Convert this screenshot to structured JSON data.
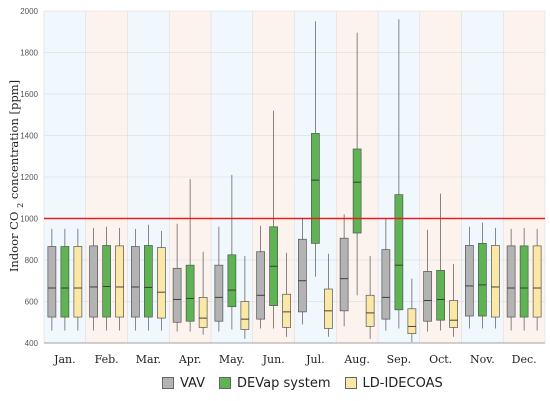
{
  "chart_data": {
    "type": "box",
    "ylabel": "Indoor CO2 concentration [ppm]",
    "ylim": [
      400,
      2000
    ],
    "y_ticks": [
      400,
      600,
      800,
      1000,
      1200,
      1400,
      1600,
      1800,
      2000
    ],
    "threshold": {
      "value": 1000,
      "color": "#e81e1e"
    },
    "categories": [
      "Jan.",
      "Feb.",
      "Mar.",
      "Apr.",
      "May.",
      "Jun.",
      "Jul.",
      "Aug.",
      "Sep.",
      "Oct.",
      "Nov.",
      "Dec."
    ],
    "band_colors": [
      "#f0f7fd",
      "#fdf3ee"
    ],
    "series": [
      {
        "name": "VAV",
        "color": "#b3b3b3",
        "boxes": [
          {
            "min": 460,
            "q1": 525,
            "median": 665,
            "q3": 865,
            "max": 950
          },
          {
            "min": 460,
            "q1": 525,
            "median": 670,
            "q3": 868,
            "max": 955
          },
          {
            "min": 460,
            "q1": 525,
            "median": 670,
            "q3": 865,
            "max": 950
          },
          {
            "min": 455,
            "q1": 500,
            "median": 610,
            "q3": 760,
            "max": 975
          },
          {
            "min": 455,
            "q1": 505,
            "median": 620,
            "q3": 775,
            "max": 960
          },
          {
            "min": 470,
            "q1": 515,
            "median": 630,
            "q3": 840,
            "max": 965
          },
          {
            "min": 490,
            "q1": 550,
            "median": 700,
            "q3": 900,
            "max": 1000
          },
          {
            "min": 480,
            "q1": 555,
            "median": 710,
            "q3": 905,
            "max": 1020
          },
          {
            "min": 460,
            "q1": 515,
            "median": 620,
            "q3": 850,
            "max": 1000
          },
          {
            "min": 455,
            "q1": 505,
            "median": 605,
            "q3": 745,
            "max": 945
          },
          {
            "min": 470,
            "q1": 530,
            "median": 675,
            "q3": 870,
            "max": 960
          },
          {
            "min": 460,
            "q1": 525,
            "median": 665,
            "q3": 868,
            "max": 950
          }
        ]
      },
      {
        "name": "DEVap system",
        "color": "#5eb352",
        "boxes": [
          {
            "min": 460,
            "q1": 525,
            "median": 665,
            "q3": 865,
            "max": 950
          },
          {
            "min": 460,
            "q1": 525,
            "median": 672,
            "q3": 870,
            "max": 960
          },
          {
            "min": 460,
            "q1": 525,
            "median": 668,
            "q3": 870,
            "max": 970
          },
          {
            "min": 455,
            "q1": 505,
            "median": 615,
            "q3": 775,
            "max": 1190
          },
          {
            "min": 465,
            "q1": 575,
            "median": 655,
            "q3": 825,
            "max": 1210
          },
          {
            "min": 470,
            "q1": 580,
            "median": 770,
            "q3": 960,
            "max": 1520
          },
          {
            "min": 720,
            "q1": 880,
            "median": 1185,
            "q3": 1410,
            "max": 1950
          },
          {
            "min": 630,
            "q1": 930,
            "median": 1175,
            "q3": 1335,
            "max": 1895
          },
          {
            "min": 470,
            "q1": 560,
            "median": 775,
            "q3": 1115,
            "max": 1960
          },
          {
            "min": 460,
            "q1": 510,
            "median": 610,
            "q3": 750,
            "max": 1120
          },
          {
            "min": 470,
            "q1": 530,
            "median": 680,
            "q3": 880,
            "max": 980
          },
          {
            "min": 460,
            "q1": 525,
            "median": 665,
            "q3": 868,
            "max": 955
          }
        ]
      },
      {
        "name": "LD-IDECOAS",
        "color": "#fbe7a6",
        "boxes": [
          {
            "min": 460,
            "q1": 525,
            "median": 665,
            "q3": 865,
            "max": 950
          },
          {
            "min": 460,
            "q1": 525,
            "median": 670,
            "q3": 868,
            "max": 955
          },
          {
            "min": 460,
            "q1": 520,
            "median": 645,
            "q3": 860,
            "max": 940
          },
          {
            "min": 440,
            "q1": 475,
            "median": 520,
            "q3": 620,
            "max": 840
          },
          {
            "min": 420,
            "q1": 465,
            "median": 515,
            "q3": 600,
            "max": 820
          },
          {
            "min": 430,
            "q1": 475,
            "median": 550,
            "q3": 635,
            "max": 835
          },
          {
            "min": 430,
            "q1": 470,
            "median": 555,
            "q3": 660,
            "max": 830
          },
          {
            "min": 420,
            "q1": 480,
            "median": 545,
            "q3": 630,
            "max": 820
          },
          {
            "min": 405,
            "q1": 445,
            "median": 480,
            "q3": 565,
            "max": 710
          },
          {
            "min": 430,
            "q1": 475,
            "median": 510,
            "q3": 605,
            "max": 780
          },
          {
            "min": 470,
            "q1": 525,
            "median": 670,
            "q3": 870,
            "max": 955
          },
          {
            "min": 460,
            "q1": 525,
            "median": 665,
            "q3": 868,
            "max": 950
          }
        ]
      }
    ]
  }
}
